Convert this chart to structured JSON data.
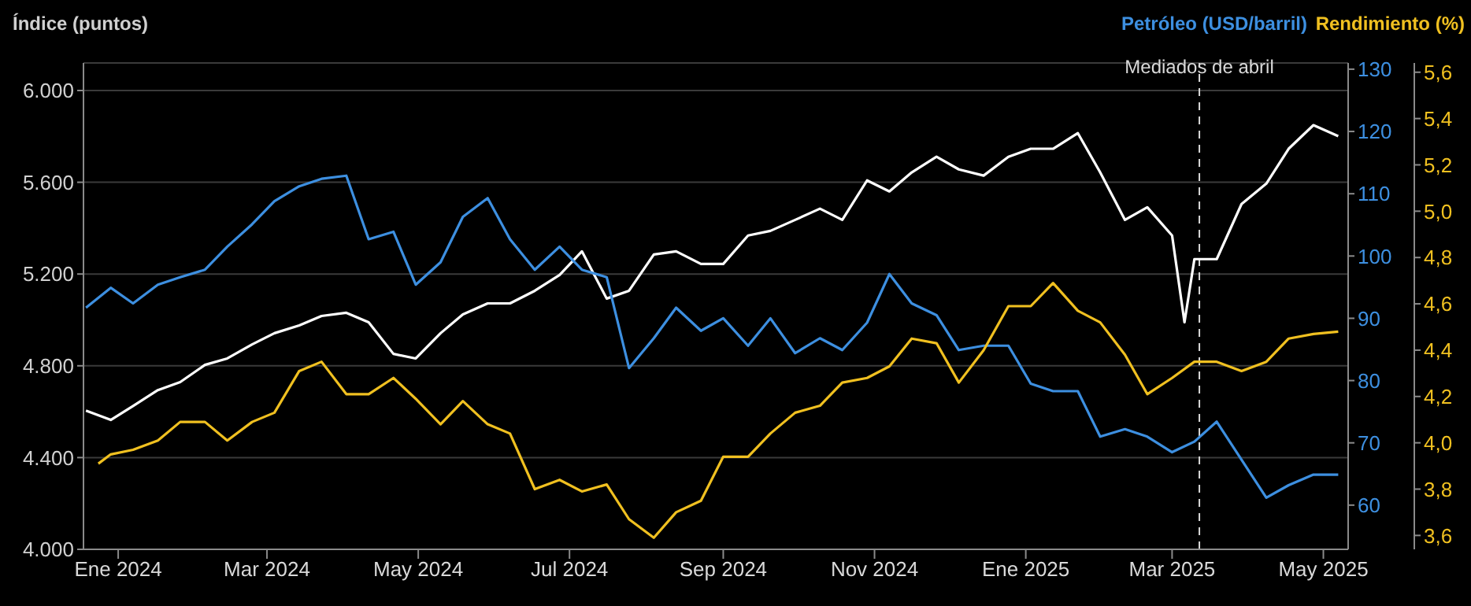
{
  "chart_data": {
    "type": "line",
    "ylabel": "Índice (puntos)",
    "y2label": "Petróleo (USD/barril)",
    "y3label": "Rendimiento (%)",
    "xlim": [
      "2023-12-18",
      "2025-05-11"
    ],
    "xticks": [
      {
        "value": "2024-01-01",
        "label": "Ene 2024"
      },
      {
        "value": "2024-03-01",
        "label": "Mar 2024"
      },
      {
        "value": "2024-05-01",
        "label": "May 2024"
      },
      {
        "value": "2024-07-01",
        "label": "Jul 2024"
      },
      {
        "value": "2024-09-01",
        "label": "Sep 2024"
      },
      {
        "value": "2024-11-01",
        "label": "Nov 2024"
      },
      {
        "value": "2025-01-01",
        "label": "Ene 2025"
      },
      {
        "value": "2025-03-01",
        "label": "Mar 2025"
      },
      {
        "value": "2025-05-01",
        "label": "May 2025"
      }
    ],
    "ylim": [
      4000,
      6120
    ],
    "yticks": [
      {
        "value": 4000,
        "label": "4.000"
      },
      {
        "value": 4400,
        "label": "4.400"
      },
      {
        "value": 4800,
        "label": "4.800"
      },
      {
        "value": 5200,
        "label": "5.200"
      },
      {
        "value": 5600,
        "label": "5.600"
      },
      {
        "value": 6000,
        "label": "6.000"
      }
    ],
    "y2lim": [
      52.9,
      131
    ],
    "y2ticks": [
      60,
      70,
      80,
      90,
      100,
      110,
      120,
      130
    ],
    "y3lim": [
      3.54,
      5.64
    ],
    "y3ticks": [
      {
        "value": 3.6,
        "label": "3,6"
      },
      {
        "value": 3.8,
        "label": "3,8"
      },
      {
        "value": 4.0,
        "label": "4,0"
      },
      {
        "value": 4.2,
        "label": "4,2"
      },
      {
        "value": 4.4,
        "label": "4,4"
      },
      {
        "value": 4.6,
        "label": "4,6"
      },
      {
        "value": 4.8,
        "label": "4,8"
      },
      {
        "value": 5.0,
        "label": "5,0"
      },
      {
        "value": 5.2,
        "label": "5,2"
      },
      {
        "value": 5.4,
        "label": "5,4"
      },
      {
        "value": 5.6,
        "label": "5,6"
      }
    ],
    "grid": "y",
    "marker": "none",
    "line_style": "solid",
    "ref_lines": [
      {
        "axis": "x",
        "value": "2025-03-12",
        "label": "Mediados de abril",
        "color": "#d9d9d9",
        "line_style": "dashed"
      }
    ],
    "series": [
      {
        "color": "#ffffff",
        "axis": "y",
        "x": [
          "2023-12-19",
          "2023-12-29",
          "2024-01-07",
          "2024-01-17",
          "2024-01-26",
          "2024-02-05",
          "2024-02-14",
          "2024-02-24",
          "2024-03-04",
          "2024-03-14",
          "2024-03-23",
          "2024-04-02",
          "2024-04-11",
          "2024-04-21",
          "2024-04-30",
          "2024-05-10",
          "2024-05-19",
          "2024-05-29",
          "2024-06-07",
          "2024-06-17",
          "2024-06-27",
          "2024-07-06",
          "2024-07-16",
          "2024-07-25",
          "2024-08-04",
          "2024-08-13",
          "2024-08-23",
          "2024-09-01",
          "2024-09-11",
          "2024-09-20",
          "2024-09-30",
          "2024-10-10",
          "2024-10-19",
          "2024-10-29",
          "2024-11-07",
          "2024-11-16",
          "2024-11-26",
          "2024-12-05",
          "2024-12-15",
          "2024-12-25",
          "2025-01-03",
          "2025-01-12",
          "2025-01-22",
          "2025-01-31",
          "2025-02-10",
          "2025-02-19",
          "2025-03-01",
          "2025-03-06",
          "2025-03-10",
          "2025-03-19",
          "2025-03-29",
          "2025-04-08",
          "2025-04-17",
          "2025-04-27",
          "2025-05-07"
        ],
        "values": [
          4605,
          4564,
          4625,
          4694,
          4729,
          4804,
          4832,
          4893,
          4942,
          4976,
          5017,
          5031,
          4990,
          4852,
          4832,
          4942,
          5024,
          5072,
          5072,
          5127,
          5196,
          5299,
          5093,
          5127,
          5285,
          5299,
          5244,
          5244,
          5368,
          5388,
          5436,
          5485,
          5436,
          5608,
          5560,
          5643,
          5711,
          5656,
          5629,
          5711,
          5746,
          5746,
          5814,
          5643,
          5436,
          5491,
          5368,
          4990,
          5265,
          5265,
          5505,
          5594,
          5746,
          5849,
          5801
        ]
      },
      {
        "color": "#3d8fe0",
        "axis": "y2",
        "x": [
          "2023-12-19",
          "2023-12-29",
          "2024-01-07",
          "2024-01-17",
          "2024-01-26",
          "2024-02-05",
          "2024-02-14",
          "2024-02-24",
          "2024-03-04",
          "2024-03-14",
          "2024-03-23",
          "2024-04-02",
          "2024-04-11",
          "2024-04-21",
          "2024-04-30",
          "2024-05-10",
          "2024-05-19",
          "2024-05-29",
          "2024-06-07",
          "2024-06-17",
          "2024-06-27",
          "2024-07-06",
          "2024-07-16",
          "2024-07-25",
          "2024-08-04",
          "2024-08-13",
          "2024-08-23",
          "2024-09-01",
          "2024-09-11",
          "2024-09-20",
          "2024-09-30",
          "2024-10-10",
          "2024-10-19",
          "2024-10-29",
          "2024-11-07",
          "2024-11-16",
          "2024-11-26",
          "2024-12-05",
          "2024-12-15",
          "2024-12-25",
          "2025-01-03",
          "2025-01-12",
          "2025-01-22",
          "2025-01-31",
          "2025-02-10",
          "2025-02-19",
          "2025-03-01",
          "2025-03-10",
          "2025-03-19",
          "2025-03-29",
          "2025-04-08",
          "2025-04-17",
          "2025-04-27",
          "2025-05-07"
        ],
        "values": [
          91.7,
          94.9,
          92.4,
          95.4,
          96.6,
          97.8,
          101.5,
          105.1,
          108.8,
          111.2,
          112.4,
          112.9,
          102.7,
          103.9,
          95.4,
          99,
          106.3,
          109.3,
          102.7,
          97.8,
          101.5,
          97.8,
          96.6,
          82,
          86.8,
          91.7,
          88,
          90,
          85.6,
          90,
          84.4,
          86.8,
          84.9,
          89.3,
          97.1,
          92.4,
          90.5,
          84.9,
          85.6,
          85.6,
          79.5,
          78.3,
          78.3,
          71,
          72.2,
          71,
          68.5,
          70.2,
          73.4,
          67.3,
          61.2,
          63.2,
          64.9,
          64.9
        ]
      },
      {
        "color": "#f0c020",
        "axis": "y3",
        "x": [
          "2023-12-24",
          "2023-12-29",
          "2024-01-07",
          "2024-01-17",
          "2024-01-26",
          "2024-02-05",
          "2024-02-14",
          "2024-02-24",
          "2024-03-04",
          "2024-03-14",
          "2024-03-23",
          "2024-04-02",
          "2024-04-11",
          "2024-04-21",
          "2024-04-30",
          "2024-05-10",
          "2024-05-19",
          "2024-05-29",
          "2024-06-07",
          "2024-06-17",
          "2024-06-27",
          "2024-07-06",
          "2024-07-16",
          "2024-07-25",
          "2024-08-04",
          "2024-08-13",
          "2024-08-23",
          "2024-09-01",
          "2024-09-11",
          "2024-09-20",
          "2024-09-30",
          "2024-10-10",
          "2024-10-19",
          "2024-10-29",
          "2024-11-07",
          "2024-11-16",
          "2024-11-26",
          "2024-12-05",
          "2024-12-15",
          "2024-12-25",
          "2025-01-03",
          "2025-01-12",
          "2025-01-22",
          "2025-01-31",
          "2025-02-10",
          "2025-02-19",
          "2025-03-01",
          "2025-03-10",
          "2025-03-19",
          "2025-03-29",
          "2025-04-08",
          "2025-04-17",
          "2025-04-27",
          "2025-05-07"
        ],
        "values": [
          3.91,
          3.95,
          3.97,
          4.01,
          4.09,
          4.09,
          4.01,
          4.09,
          4.13,
          4.31,
          4.35,
          4.21,
          4.21,
          4.28,
          4.19,
          4.08,
          4.18,
          4.08,
          4.04,
          3.8,
          3.84,
          3.79,
          3.82,
          3.67,
          3.59,
          3.7,
          3.75,
          3.94,
          3.94,
          4.04,
          4.13,
          4.16,
          4.26,
          4.28,
          4.33,
          4.45,
          4.43,
          4.26,
          4.4,
          4.59,
          4.59,
          4.69,
          4.57,
          4.52,
          4.38,
          4.21,
          4.28,
          4.35,
          4.35,
          4.31,
          4.35,
          4.45,
          4.47,
          4.48
        ]
      }
    ]
  }
}
